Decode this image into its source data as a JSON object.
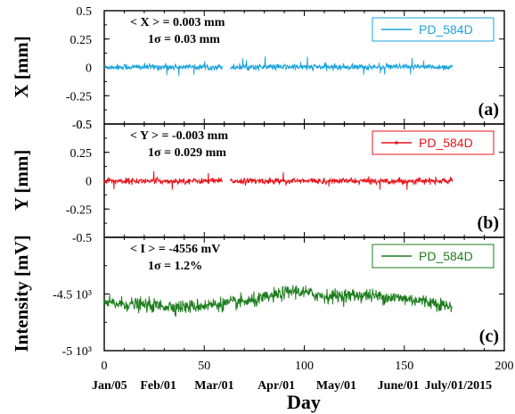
{
  "chart_data": [
    {
      "type": "line",
      "panel_label": "(a)",
      "ylabel": "X [mm]",
      "ylim": [
        -0.5,
        0.5
      ],
      "yticks": [
        -0.5,
        -0.25,
        0,
        0.25,
        0.5
      ],
      "ytick_labels": [
        "-0.5",
        "-0.25",
        "0",
        "0.25",
        "0.5"
      ],
      "annotation_mean": "< X > = 0.003 mm",
      "annotation_sigma": "1σ = 0.03 mm",
      "series": [
        {
          "name": "PD_584D",
          "color": "#1ba3dc",
          "mean": 0.003,
          "sigma": 0.03,
          "x_range": [
            0,
            174
          ],
          "gap": [
            59,
            63
          ]
        }
      ]
    },
    {
      "type": "line",
      "panel_label": "(b)",
      "ylabel": "Y [mm]",
      "ylim": [
        -0.5,
        0.5
      ],
      "yticks": [
        -0.5,
        -0.25,
        0,
        0.25,
        0.5
      ],
      "ytick_labels": [
        "-0.5",
        "-0.25",
        "0",
        "0.25",
        "0.5"
      ],
      "annotation_mean": "< Y > = -0.003 mm",
      "annotation_sigma": "1σ = 0.029 mm",
      "series": [
        {
          "name": "PD_584D",
          "color": "#e8141b",
          "mean": -0.003,
          "sigma": 0.029,
          "x_range": [
            0,
            174
          ],
          "gap": [
            59,
            63
          ]
        }
      ]
    },
    {
      "type": "line",
      "panel_label": "(c)",
      "ylabel": "Intensity [mV]",
      "ylim": [
        -5000,
        -4000
      ],
      "yticks": [
        -5000,
        -4500
      ],
      "ytick_labels": [
        "-5 10³",
        "-4.5 10³"
      ],
      "annotation_mean": "< I > = -4556 mV",
      "annotation_sigma": "1σ = 1.2%",
      "series": [
        {
          "name": "PD_584D",
          "color": "#1d7d1d",
          "mean": -4556,
          "sigma_percent": 1.2,
          "x_range": [
            0,
            174
          ],
          "trend": [
            [
              0,
              -4580
            ],
            [
              40,
              -4615
            ],
            [
              60,
              -4585
            ],
            [
              75,
              -4560
            ],
            [
              95,
              -4470
            ],
            [
              110,
              -4520
            ],
            [
              130,
              -4510
            ],
            [
              150,
              -4540
            ],
            [
              165,
              -4575
            ],
            [
              174,
              -4620
            ]
          ]
        }
      ]
    }
  ],
  "x_axis": {
    "xlabel": "Day",
    "xlim": [
      0,
      200
    ],
    "xticks": [
      0,
      50,
      100,
      150,
      200
    ],
    "date_labels": [
      {
        "x": 0,
        "label": "Jan/05"
      },
      {
        "x": 27,
        "label": "Feb/01"
      },
      {
        "x": 55,
        "label": "Mar/01"
      },
      {
        "x": 86,
        "label": "Apr/01"
      },
      {
        "x": 116,
        "label": "May/01"
      },
      {
        "x": 147,
        "label": "June/01"
      },
      {
        "x": 177,
        "label": "July/01/2015"
      }
    ]
  }
}
